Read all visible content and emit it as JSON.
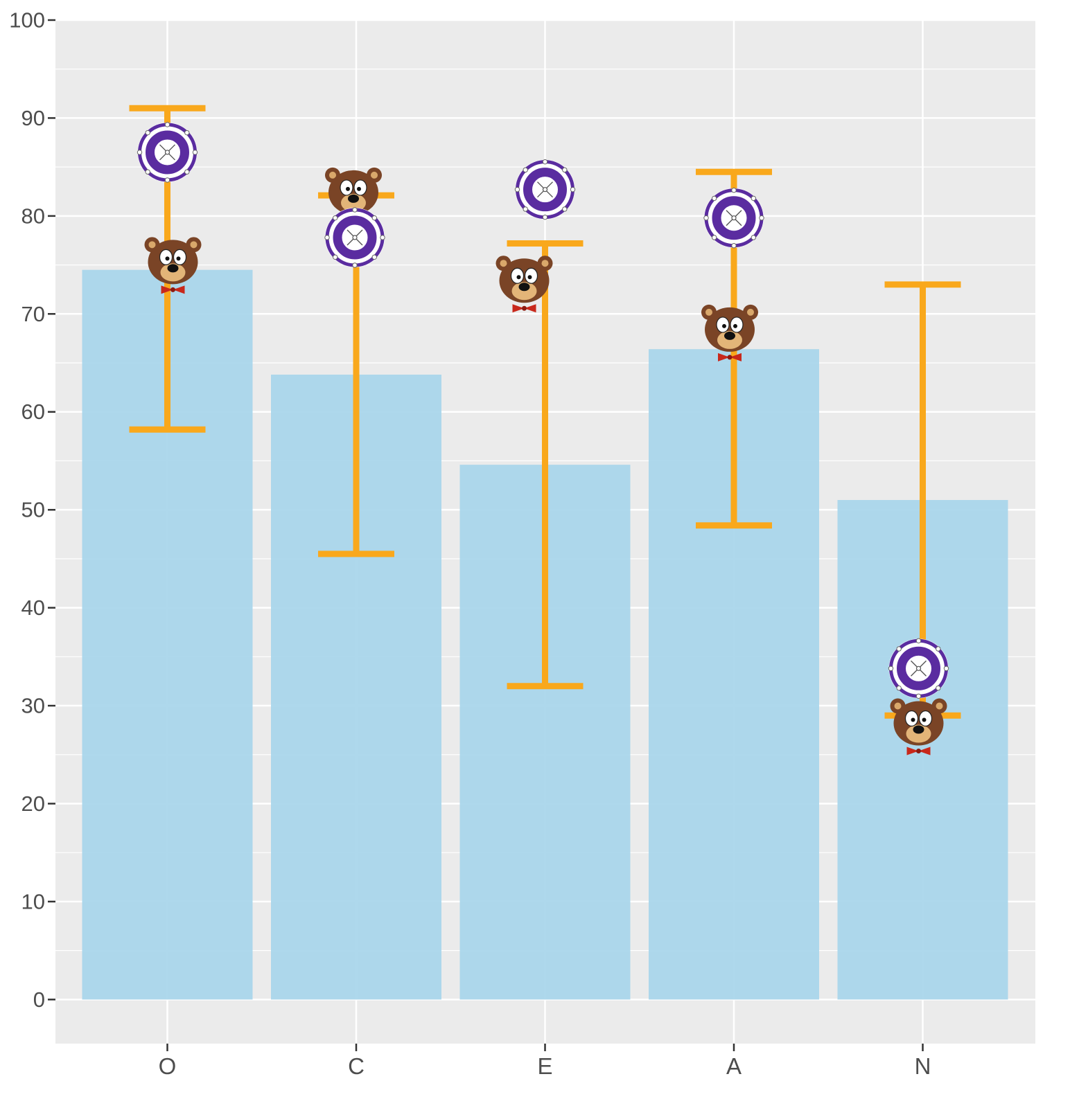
{
  "chart_data": {
    "type": "bar",
    "title": "",
    "xlabel": "",
    "ylabel": "",
    "categories": [
      "O",
      "C",
      "E",
      "A",
      "N"
    ],
    "ylim": [
      -4.5,
      100
    ],
    "yticks": [
      0,
      10,
      20,
      30,
      40,
      50,
      60,
      70,
      80,
      90,
      100
    ],
    "grid": true,
    "legend": "none",
    "series": [
      {
        "values": [
          74.5,
          63.8,
          54.6,
          66.4,
          51.0
        ],
        "color": "#a7d5ea"
      }
    ],
    "error_bars": {
      "color": "#f9a81c",
      "lower": [
        58.2,
        45.5,
        32.0,
        48.4,
        29.0
      ],
      "upper": [
        91.0,
        82.1,
        77.2,
        84.5,
        73.0
      ]
    },
    "markers": [
      {
        "icon": "bear-face-icon",
        "values": [
          75.3,
          82.4,
          73.4,
          68.4,
          28.2
        ]
      },
      {
        "icon": "purple-ring-icon",
        "values": [
          86.5,
          77.8,
          82.7,
          79.8,
          33.8
        ]
      }
    ],
    "colors": {
      "panel": "#ebebeb",
      "grid": "#ffffff",
      "axis_text": "#4d4d4d",
      "bear_fur": "#7a4426",
      "bear_bowtie": "#c8281b",
      "ring": "#5a2ca0"
    }
  }
}
